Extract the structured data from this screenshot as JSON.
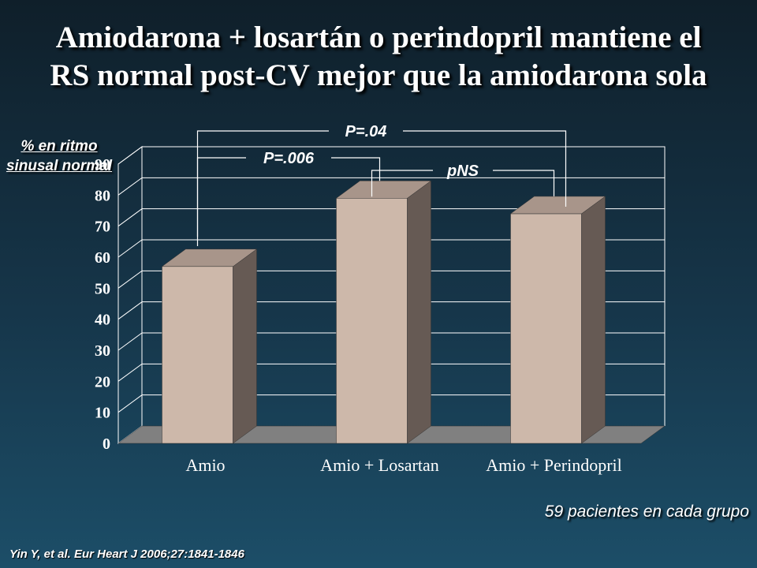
{
  "title": {
    "line1": "Amiodarona + losartán o perindopril mantiene el",
    "line2": "RS normal post-CV mejor que la amiodarona sola"
  },
  "y_axis_label": {
    "line1": "% en ritmo",
    "line2": "sinusal normal"
  },
  "note": "59 pacientes en cada grupo",
  "citation": "Yin Y, et al. Eur Heart J 2006;27:1841-1846",
  "colors": {
    "bar_front": "#cdb8aa",
    "bar_side": "#665a54",
    "bar_top": "#a8958a",
    "floor": "#808080",
    "gridline": "#ffffff"
  },
  "chart_data": {
    "type": "bar",
    "categories": [
      "Amio",
      "Amio + Losartan",
      "Amio + Perindopril"
    ],
    "values": [
      57,
      79,
      74
    ],
    "xlabel": "",
    "ylabel": "% en ritmo sinusal normal",
    "ylim": [
      0,
      90
    ],
    "yticks": [
      0,
      10,
      20,
      30,
      40,
      50,
      60,
      70,
      80,
      90
    ],
    "grid": true,
    "three_d": true,
    "annotations": [
      {
        "label": "P=.006",
        "from": 0,
        "to": 1
      },
      {
        "label": "pNS",
        "from": 1,
        "to": 2
      },
      {
        "label": "P=.04",
        "from": 0,
        "to": 2
      }
    ]
  }
}
